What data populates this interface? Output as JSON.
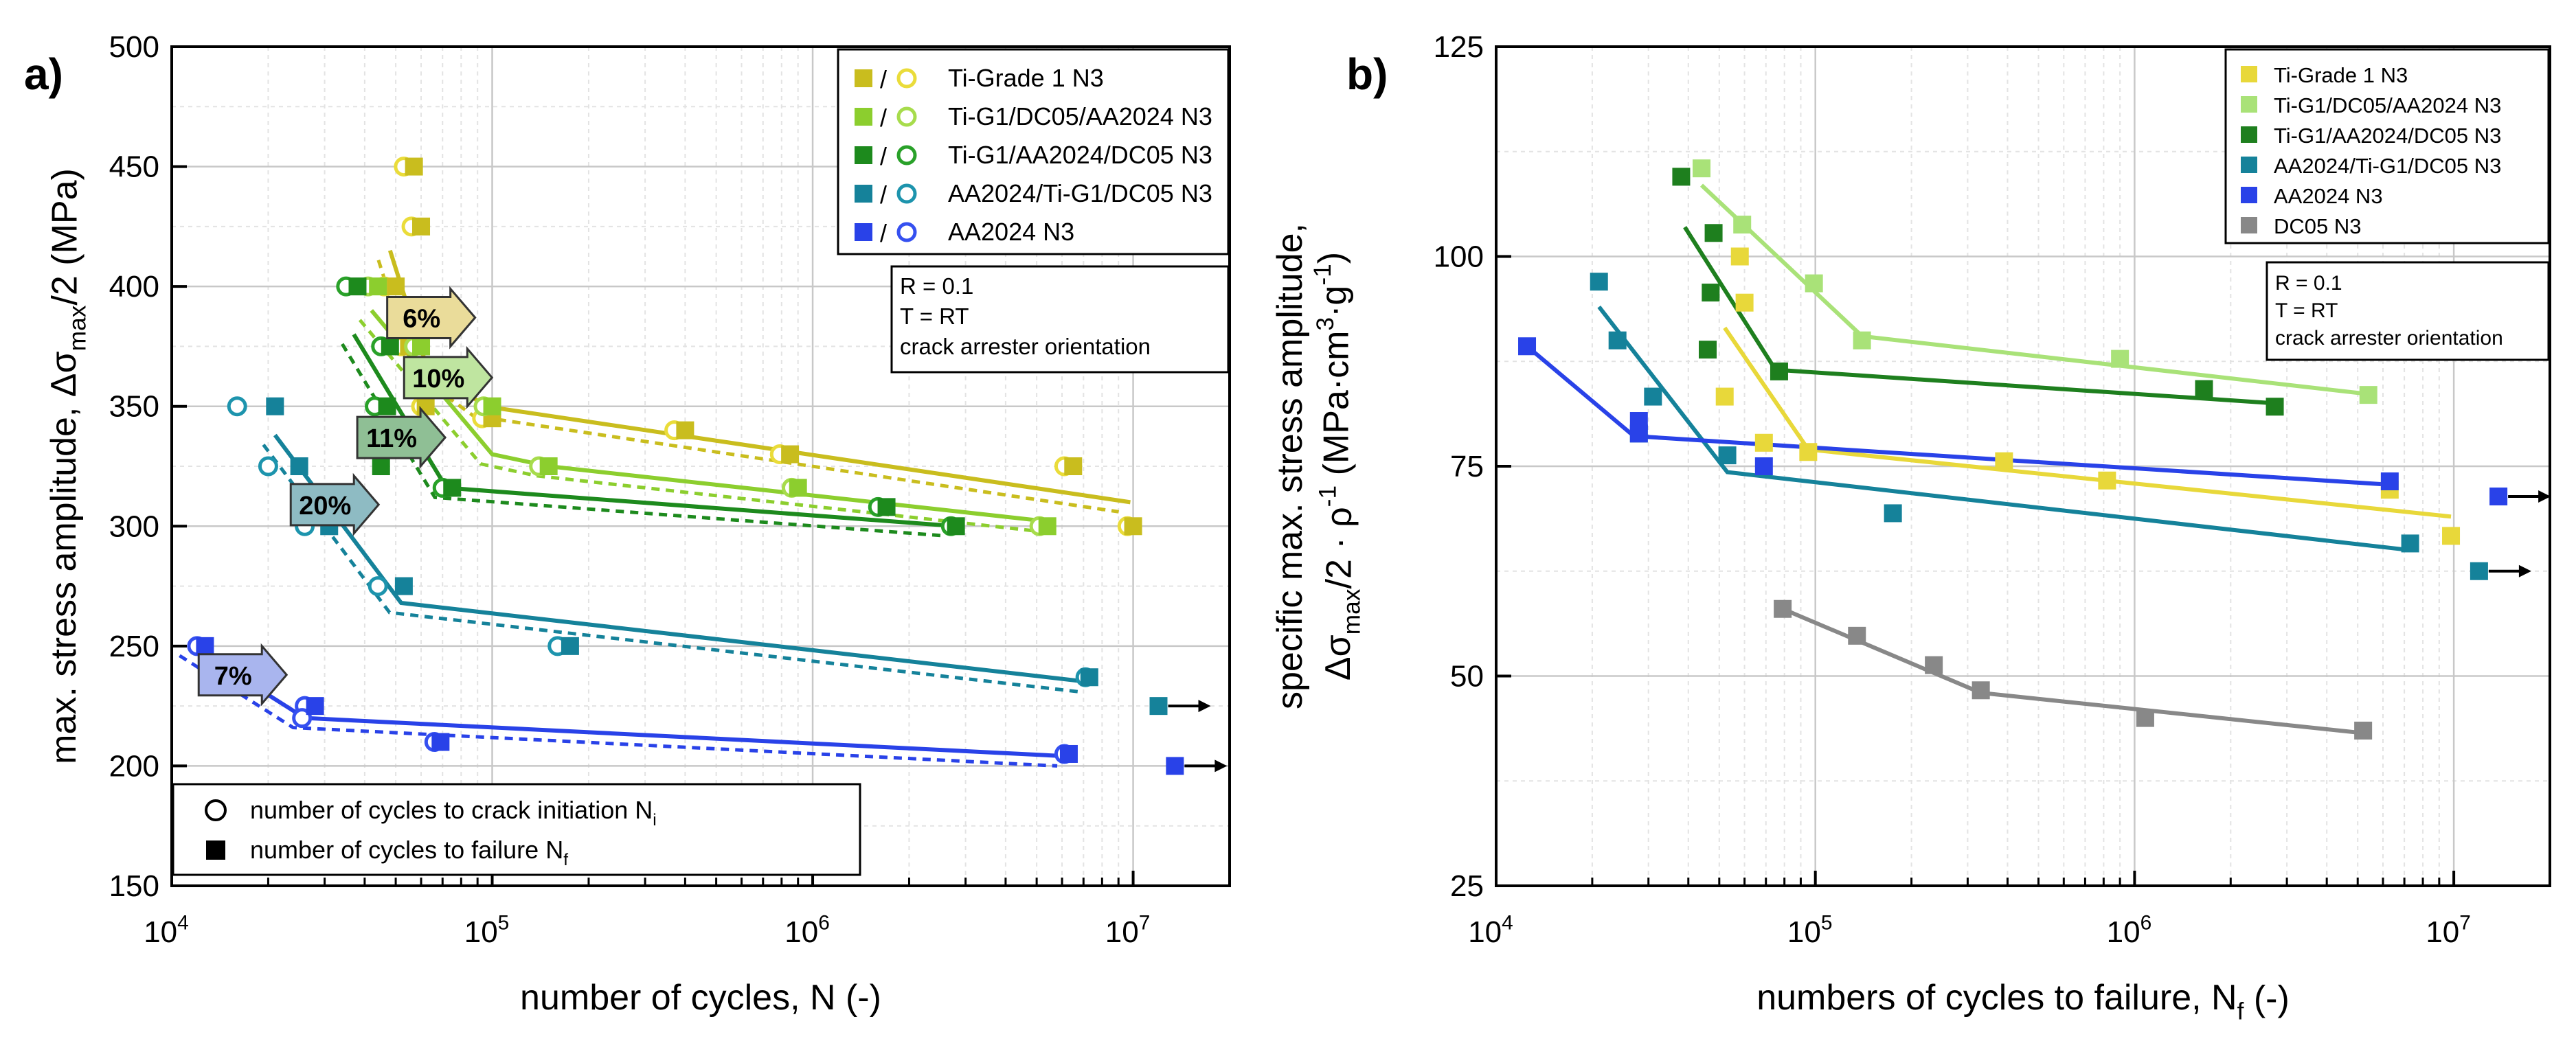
{
  "chart_data": [
    {
      "panel": "a)",
      "type": "scatter",
      "xscale": "log",
      "xlim": [
        10000,
        20000000
      ],
      "ylim": [
        150,
        500
      ],
      "xlabel": "number of cycles, N (-)",
      "ylabel_pre": "max. stress amplitude, Δσ",
      "ylabel_sub": "max",
      "ylabel_post": "/2 (MPa)",
      "xticks": [
        {
          "value": 10000,
          "base": "10",
          "exp": "4"
        },
        {
          "value": 100000,
          "base": "10",
          "exp": "5"
        },
        {
          "value": 1000000,
          "base": "10",
          "exp": "6"
        },
        {
          "value": 10000000,
          "base": "10",
          "exp": "7"
        }
      ],
      "yticks": [
        150,
        200,
        250,
        300,
        350,
        400,
        450,
        500
      ],
      "conditions": [
        "R = 0.1",
        "T = RT",
        "crack arrester orientation"
      ],
      "marker_legend": [
        {
          "symbol": "circle",
          "label": "number of cycles to crack initiation N",
          "sub": "i"
        },
        {
          "symbol": "square",
          "label": "number of cycles to failure N",
          "sub": "f"
        }
      ],
      "series": [
        {
          "name": "Ti-Grade 1 N3",
          "sep": "/",
          "color": "#c9bd1e",
          "light": "#eadc3a",
          "failure": [
            [
              57000,
              450
            ],
            [
              60000,
              425
            ],
            [
              50000,
              400
            ],
            [
              55000,
              375
            ],
            [
              62000,
              350
            ],
            [
              100000,
              345
            ],
            [
              400000,
              340
            ],
            [
              850000,
              330
            ],
            [
              6500000,
              325
            ],
            [
              10000000,
              300
            ]
          ],
          "initiation": [
            [
              53000,
              450
            ],
            [
              56000,
              425
            ],
            [
              46000,
              400
            ],
            [
              52000,
              375
            ],
            [
              60000,
              350
            ],
            [
              93000,
              345
            ],
            [
              370000,
              340
            ],
            [
              790000,
              330
            ],
            [
              6100000,
              325
            ],
            [
              9600000,
              300
            ]
          ],
          "fit": [
            [
              48000,
              415
            ],
            [
              62000,
              368
            ],
            [
              95000,
              350
            ],
            [
              9800000,
              310
            ]
          ]
        },
        {
          "name": "Ti-G1/DC05/AA2024 N3",
          "sep": "/",
          "color": "#8cce2e",
          "light": "#a7dc4c",
          "failure": [
            [
              44000,
              400
            ],
            [
              60000,
              375
            ],
            [
              100000,
              350
            ],
            [
              150000,
              325
            ],
            [
              900000,
              316
            ],
            [
              5400000,
              300
            ]
          ],
          "initiation": [
            [
              41000,
              400
            ],
            [
              57000,
              375
            ],
            [
              94000,
              350
            ],
            [
              140000,
              325
            ],
            [
              860000,
              316
            ],
            [
              5100000,
              300
            ]
          ],
          "fit": [
            [
              42000,
              390
            ],
            [
              100000,
              330
            ],
            [
              150000,
              325
            ],
            [
              5400000,
              302
            ]
          ]
        },
        {
          "name": "Ti-G1/AA2024/DC05 N3",
          "sep": "/",
          "color": "#1d8a1d",
          "light": "#29a129",
          "failure": [
            [
              38000,
              400
            ],
            [
              48000,
              375
            ],
            [
              47000,
              350
            ],
            [
              45000,
              325
            ],
            [
              75000,
              316
            ],
            [
              1700000,
              308
            ],
            [
              2800000,
              300
            ]
          ],
          "initiation": [
            [
              35000,
              400
            ],
            [
              45000,
              375
            ],
            [
              43000,
              350
            ],
            [
              70000,
              316
            ],
            [
              1600000,
              308
            ],
            [
              2700000,
              300
            ]
          ],
          "fit": [
            [
              37000,
              380
            ],
            [
              72000,
              316
            ],
            [
              2800000,
              300
            ]
          ]
        },
        {
          "name": "AA2024/Ti-G1/DC05 N3",
          "sep": "/",
          "color": "#15829a",
          "light": "#1d94ad",
          "failure": [
            [
              21000,
              350
            ],
            [
              25000,
              325
            ],
            [
              31000,
              300
            ],
            [
              53000,
              275
            ],
            [
              175000,
              250
            ],
            [
              7300000,
              237
            ],
            [
              12000000,
              225
            ]
          ],
          "initiation": [
            [
              16000,
              350
            ],
            [
              20000,
              325
            ],
            [
              26000,
              300
            ],
            [
              44000,
              275
            ],
            [
              160000,
              250
            ],
            [
              7100000,
              237
            ]
          ],
          "fit": [
            [
              21000,
              338
            ],
            [
              52000,
              268
            ],
            [
              7300000,
              235
            ]
          ]
        },
        {
          "name": "AA2024 N3",
          "sep": "/",
          "color": "#2942e8",
          "light": "#3550f0",
          "failure": [
            [
              12700,
              250
            ],
            [
              28000,
              225
            ],
            [
              69000,
              210
            ],
            [
              6300000,
              205
            ],
            [
              13500000,
              200
            ]
          ],
          "initiation": [
            [
              12000,
              250
            ],
            [
              26000,
              225
            ],
            [
              25500,
              220
            ],
            [
              66000,
              210
            ],
            [
              6100000,
              205
            ]
          ],
          "fit": [
            [
              11500,
              250
            ],
            [
              26000,
              220
            ],
            [
              6300000,
              204
            ]
          ]
        }
      ],
      "arrows": [
        {
          "label": "6%",
          "x": 62000,
          "y": 387,
          "fill": "#eadc9a"
        },
        {
          "label": "10%",
          "x": 70000,
          "y": 362,
          "fill": "#bfe5a0"
        },
        {
          "label": "11%",
          "x": 50000,
          "y": 337,
          "fill": "#8fbf95"
        },
        {
          "label": "20%",
          "x": 31000,
          "y": 309,
          "fill": "#8ebbc3"
        },
        {
          "label": "7%",
          "x": 16000,
          "y": 238,
          "fill": "#a9b5ee"
        }
      ],
      "runouts": [
        {
          "x": 12000000,
          "y": 225,
          "color": "#15829a"
        },
        {
          "x": 13500000,
          "y": 200,
          "color": "#2942e8"
        }
      ]
    },
    {
      "panel": "b)",
      "type": "scatter",
      "xscale": "log",
      "xlim": [
        10000,
        20000000
      ],
      "ylim": [
        25,
        125
      ],
      "xlabel_pre": "numbers of cycles to failure, N",
      "xlabel_sub": "f",
      "xlabel_post": " (-)",
      "ylabel_line1": "specific max. stress amplitude,",
      "ylabel_line2": "Δσmax/2 · ρ-1 (MPa·cm3·g-1)",
      "xticks": [
        {
          "value": 10000,
          "base": "10",
          "exp": "4"
        },
        {
          "value": 100000,
          "base": "10",
          "exp": "5"
        },
        {
          "value": 1000000,
          "base": "10",
          "exp": "6"
        },
        {
          "value": 10000000,
          "base": "10",
          "exp": "7"
        }
      ],
      "yticks": [
        25,
        50,
        75,
        100,
        125
      ],
      "conditions": [
        "R = 0.1",
        "T = RT",
        "crack arrester orientation"
      ],
      "series": [
        {
          "name": "Ti-Grade 1 N3",
          "color": "#e8d83a",
          "failure": [
            [
              58000,
              100
            ],
            [
              60000,
              94.5
            ],
            [
              52000,
              83.3
            ],
            [
              69000,
              77.8
            ],
            [
              95000,
              76.7
            ],
            [
              390000,
              75.6
            ],
            [
              820000,
              73.3
            ],
            [
              6300000,
              72.2
            ],
            [
              9800000,
              66.7
            ]
          ],
          "fit": [
            [
              52000,
              91.5
            ],
            [
              95000,
              77
            ],
            [
              9800000,
              69
            ]
          ]
        },
        {
          "name": "Ti-G1/DC05/AA2024 N3",
          "color": "#a9e278",
          "failure": [
            [
              44000,
              110.5
            ],
            [
              59000,
              103.8
            ],
            [
              99000,
              96.8
            ],
            [
              140000,
              90
            ],
            [
              900000,
              87.8
            ],
            [
              5400000,
              83.5
            ]
          ],
          "fit": [
            [
              44000,
              108.5
            ],
            [
              140000,
              90.5
            ],
            [
              5400000,
              83.6
            ]
          ]
        },
        {
          "name": "Ti-G1/AA2024/DC05 N3",
          "color": "#1e7f1e",
          "failure": [
            [
              38000,
              109.5
            ],
            [
              48000,
              102.8
            ],
            [
              47000,
              95.7
            ],
            [
              46000,
              88.9
            ],
            [
              77000,
              86.3
            ],
            [
              1650000,
              84.2
            ],
            [
              2750000,
              82.1
            ]
          ],
          "fit": [
            [
              39000,
              103.5
            ],
            [
              75000,
              86.5
            ],
            [
              2750000,
              82.5
            ]
          ]
        },
        {
          "name": "AA2024/Ti-G1/DC05 N3",
          "color": "#15829a",
          "failure": [
            [
              21000,
              97
            ],
            [
              24000,
              90
            ],
            [
              31000,
              83.3
            ],
            [
              28000,
              78.9
            ],
            [
              53000,
              76.3
            ],
            [
              175000,
              69.4
            ],
            [
              7300000,
              65.8
            ],
            [
              12000000,
              62.5
            ]
          ],
          "fit": [
            [
              21000,
              94
            ],
            [
              53000,
              74.3
            ],
            [
              7300000,
              65
            ]
          ]
        },
        {
          "name": "AA2024 N3",
          "color": "#2942e8",
          "failure": [
            [
              12500,
              89.3
            ],
            [
              28000,
              80.4
            ],
            [
              28000,
              78.9
            ],
            [
              69000,
              75
            ],
            [
              6300000,
              73.2
            ],
            [
              13800000,
              71.4
            ]
          ],
          "fit": [
            [
              12500,
              89.3
            ],
            [
              27000,
              78.6
            ],
            [
              6300000,
              72.8
            ]
          ]
        },
        {
          "name": "DC05 N3",
          "color": "#888888",
          "failure": [
            [
              79000,
              58
            ],
            [
              135000,
              54.8
            ],
            [
              235000,
              51.3
            ],
            [
              330000,
              48.3
            ],
            [
              1080000,
              45
            ],
            [
              5200000,
              43.5
            ]
          ],
          "fit": [
            [
              79000,
              58
            ],
            [
              330000,
              48
            ],
            [
              5200000,
              43.2
            ]
          ]
        }
      ],
      "runouts": [
        {
          "x": 12000000,
          "y": 62.5,
          "color": "#15829a"
        },
        {
          "x": 13800000,
          "y": 71.4,
          "color": "#2942e8"
        }
      ]
    }
  ]
}
